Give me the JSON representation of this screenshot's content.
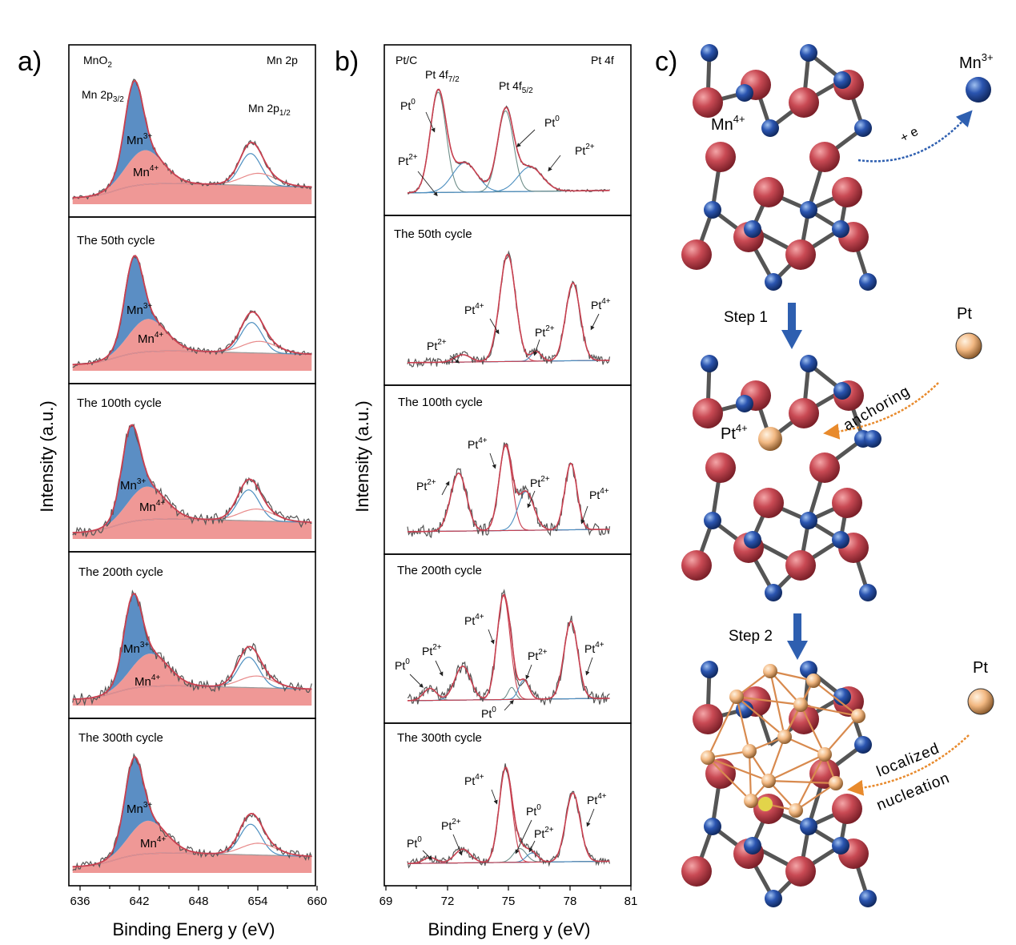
{
  "panels": {
    "a": {
      "letter": "a)",
      "ylabel": "Intensity (a.u.)",
      "xlabel": "Binding Energ y (eV)",
      "xticks": [
        "636",
        "642",
        "648",
        "654",
        "660"
      ],
      "header_left": "MnO",
      "header_left_sub": "2",
      "header_right": "Mn 2p",
      "peak_label_a": "Mn 2p",
      "peak_label_a_sub": "3/2",
      "peak_label_b": "Mn 2p",
      "peak_label_b_sub": "1/2",
      "rows": [
        {
          "title": "",
          "mn3_label": "Mn",
          "mn3_sup": "3+",
          "mn4_label": "Mn",
          "mn4_sup": "4+"
        },
        {
          "title": "The 50th cycle",
          "mn3_label": "Mn",
          "mn3_sup": "3+",
          "mn4_label": "Mn",
          "mn4_sup": "4+"
        },
        {
          "title": "The 100th cycle",
          "mn3_label": "Mn",
          "mn3_sup": "3+",
          "mn4_label": "Mn",
          "mn4_sup": "4+"
        },
        {
          "title": "The 200th cycle",
          "mn3_label": "Mn",
          "mn3_sup": "3+",
          "mn4_label": "Mn",
          "mn4_sup": "4+"
        },
        {
          "title": "The 300th cycle",
          "mn3_label": "Mn",
          "mn3_sup": "3+",
          "mn4_label": "Mn",
          "mn4_sup": "4+"
        }
      ]
    },
    "b": {
      "letter": "b)",
      "ylabel": "Intensity (a.u.)",
      "xlabel": "Binding Energ y (eV)",
      "xticks": [
        "69",
        "72",
        "75",
        "78",
        "81"
      ],
      "header_left": "Pt/C",
      "header_right": "Pt 4f",
      "peak_label_a": "Pt 4f",
      "peak_label_a_sub": "7/2",
      "peak_label_b": "Pt 4f",
      "peak_label_b_sub": "5/2",
      "rows": [
        {
          "title": "",
          "labels": [
            {
              "base": "Pt",
              "sup": "0"
            },
            {
              "base": "Pt",
              "sup": "2+"
            },
            {
              "base": "Pt",
              "sup": "0"
            },
            {
              "base": "Pt",
              "sup": "2+"
            }
          ]
        },
        {
          "title": "The 50th cycle",
          "labels": [
            {
              "base": "Pt",
              "sup": "2+"
            },
            {
              "base": "Pt",
              "sup": "4+"
            },
            {
              "base": "Pt",
              "sup": "2+"
            },
            {
              "base": "Pt",
              "sup": "4+"
            }
          ]
        },
        {
          "title": "The 100th cycle",
          "labels": [
            {
              "base": "Pt",
              "sup": "2+"
            },
            {
              "base": "Pt",
              "sup": "4+"
            },
            {
              "base": "Pt",
              "sup": "2+"
            },
            {
              "base": "Pt",
              "sup": "4+"
            }
          ]
        },
        {
          "title": "The 200th cycle",
          "labels": [
            {
              "base": "Pt",
              "sup": "0"
            },
            {
              "base": "Pt",
              "sup": "2+"
            },
            {
              "base": "Pt",
              "sup": "4+"
            },
            {
              "base": "Pt",
              "sup": "2+"
            },
            {
              "base": "Pt",
              "sup": "0"
            },
            {
              "base": "Pt",
              "sup": "4+"
            }
          ]
        },
        {
          "title": "The 300th cycle",
          "labels": [
            {
              "base": "Pt",
              "sup": "0"
            },
            {
              "base": "Pt",
              "sup": "2+"
            },
            {
              "base": "Pt",
              "sup": "4+"
            },
            {
              "base": "Pt",
              "sup": "0"
            },
            {
              "base": "Pt",
              "sup": "2+"
            },
            {
              "base": "Pt",
              "sup": "4+"
            }
          ]
        }
      ]
    },
    "c": {
      "letter": "c)",
      "mn3_label": "Mn",
      "mn3_sup": "3+",
      "mn4_label": "Mn",
      "mn4_sup": "4+",
      "electron_label": "+ e",
      "step1": "Step 1",
      "step2": "Step 2",
      "pt_label_1": "Pt",
      "pt_label_2": "Pt",
      "pt4_label": "Pt",
      "pt4_sup": "4+",
      "anchoring": "anchoring",
      "localized": "localized",
      "nucleation": "nucleation"
    }
  },
  "colors": {
    "mn3_fill": "#5b8ec4",
    "mn4_fill": "#ef9896",
    "envelope": "#c94050",
    "raw": "#555555",
    "component_blue": "#4d8fc0",
    "component_pink": "#e88a8a",
    "component_gray": "#999999",
    "o_atom": "#c94a54",
    "mn_atom": "#2b55b0",
    "pt_atom": "#f2b882",
    "arrow_blue": "#2e5fb0",
    "arrow_orange": "#e88a2c"
  },
  "chart_data": [
    {
      "type": "line",
      "title": "Mn 2p",
      "xlabel": "Binding Energ y (eV)",
      "ylabel": "Intensity (a.u.)",
      "xlim": [
        635.5,
        660
      ],
      "xticks": [
        636,
        642,
        648,
        654,
        660
      ],
      "series_order": [
        "MnO2",
        "The 50th cycle",
        "The 100th cycle",
        "The 200th cycle",
        "The 300th cycle"
      ],
      "components": [
        {
          "panel": "MnO2",
          "mn3_center": 641.9,
          "mn4_center": 643.0,
          "peak_1_2": 653.6
        },
        {
          "panel": "The 50th cycle",
          "mn3_center": 641.9,
          "mn4_center": 643.3,
          "peak_1_2": 653.7
        },
        {
          "panel": "The 100th cycle",
          "mn3_center": 641.6,
          "mn4_center": 643.2,
          "peak_1_2": 653.4
        },
        {
          "panel": "The 200th cycle",
          "mn3_center": 641.8,
          "mn4_center": 643.5,
          "peak_1_2": 653.4
        },
        {
          "panel": "The 300th cycle",
          "mn3_center": 641.9,
          "mn4_center": 643.3,
          "peak_1_2": 653.6
        }
      ]
    },
    {
      "type": "line",
      "title": "Pt 4f",
      "xlabel": "Binding Energ y (eV)",
      "ylabel": "Intensity (a.u.)",
      "xlim": [
        69,
        81
      ],
      "xticks": [
        69,
        72,
        75,
        78,
        81
      ],
      "series_order": [
        "Pt/C",
        "The 50th cycle",
        "The 100th cycle",
        "The 200th cycle",
        "The 300th cycle"
      ],
      "components": [
        {
          "panel": "Pt/C",
          "peaks": [
            {
              "state": "Pt0",
              "center": 71.6
            },
            {
              "state": "Pt2+",
              "center": 72.9
            },
            {
              "state": "Pt0",
              "center": 74.9
            },
            {
              "state": "Pt2+",
              "center": 76.1
            }
          ]
        },
        {
          "panel": "The 50th cycle",
          "peaks": [
            {
              "state": "Pt2+",
              "center": 72.8
            },
            {
              "state": "Pt4+",
              "center": 75.0
            },
            {
              "state": "Pt2+",
              "center": 76.4
            },
            {
              "state": "Pt4+",
              "center": 78.2
            }
          ]
        },
        {
          "panel": "The 100th cycle",
          "peaks": [
            {
              "state": "Pt2+",
              "center": 72.6
            },
            {
              "state": "Pt4+",
              "center": 74.9
            },
            {
              "state": "Pt2+",
              "center": 75.9
            },
            {
              "state": "Pt4+",
              "center": 78.1
            }
          ]
        },
        {
          "panel": "The 200th cycle",
          "peaks": [
            {
              "state": "Pt0",
              "center": 71.2
            },
            {
              "state": "Pt2+",
              "center": 72.8
            },
            {
              "state": "Pt4+",
              "center": 74.8
            },
            {
              "state": "Pt0",
              "center": 75.2
            },
            {
              "state": "Pt2+",
              "center": 75.8
            },
            {
              "state": "Pt4+",
              "center": 78.1
            }
          ]
        },
        {
          "panel": "The 300th cycle",
          "peaks": [
            {
              "state": "Pt0",
              "center": 71.2
            },
            {
              "state": "Pt2+",
              "center": 72.8
            },
            {
              "state": "Pt4+",
              "center": 74.9
            },
            {
              "state": "Pt0",
              "center": 75.6
            },
            {
              "state": "Pt2+",
              "center": 76.2
            },
            {
              "state": "Pt4+",
              "center": 78.2
            }
          ]
        }
      ]
    }
  ]
}
